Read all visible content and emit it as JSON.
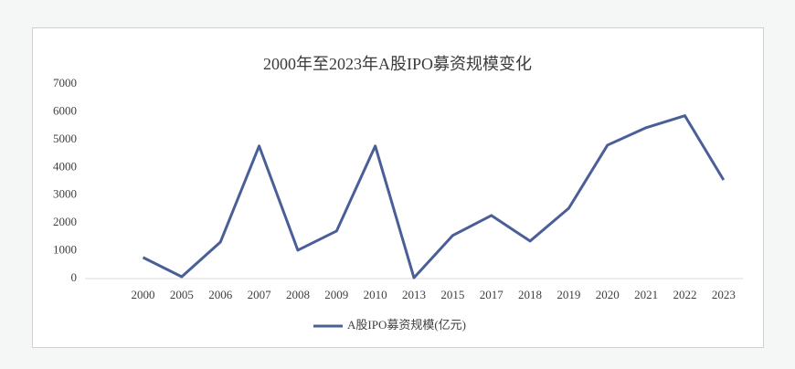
{
  "chart_data": {
    "type": "line",
    "title": "2000年至2023年A股IPO募资规模变化",
    "categories": [
      null,
      "2000",
      "2005",
      "2006",
      "2007",
      "2008",
      "2009",
      "2010",
      "2013",
      "2015",
      "2017",
      "2018",
      "2019",
      "2020",
      "2021",
      "2022",
      "2023"
    ],
    "series": [
      {
        "name": "A股IPO募资规模(亿元)",
        "color": "#4a5f98",
        "values": [
          null,
          760,
          66,
          1316,
          4770,
          1020,
          1710,
          4770,
          30,
          1550,
          2270,
          1350,
          2530,
          4800,
          5430,
          5860,
          3550
        ]
      }
    ],
    "ylim": [
      0,
      7000
    ],
    "yticks": [
      0,
      1000,
      2000,
      3000,
      4000,
      5000,
      6000,
      7000
    ],
    "grid": false,
    "legend": "bottom"
  }
}
